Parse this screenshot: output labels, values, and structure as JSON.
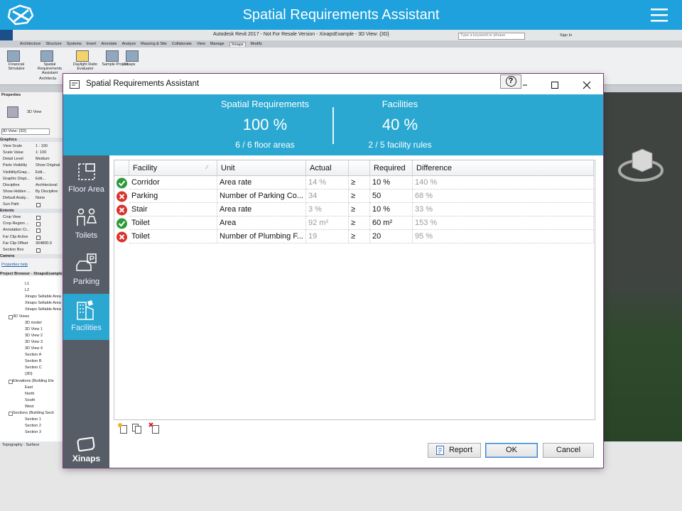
{
  "app_bar": {
    "title": "Spatial Requirements Assistant"
  },
  "revit": {
    "title": "Autodesk Revit 2017 - Not For Resale Version -   XinapsExample - 3D View: {3D}",
    "search_placeholder": "Type a keyword or phrase",
    "sign_in": "Sign In",
    "tabs": [
      "Architecture",
      "Structure",
      "Systems",
      "Insert",
      "Annotate",
      "Analyze",
      "Massing & Site",
      "Collaborate",
      "View",
      "Manage",
      "Xinaps",
      "Modify"
    ],
    "active_tab": 10,
    "ribbon_buttons": [
      "Financial Simulator",
      "Spatial Requirements Assistant",
      "Daylight Ratio Evaluator",
      "Sample Project",
      "Xinaps"
    ],
    "ribbon_panel": "Architectu",
    "properties": {
      "title": "Properties",
      "type": "3D View",
      "selector": "3D View: {3D}",
      "rows": [
        {
          "name": "Graphics",
          "section": true
        },
        {
          "name": "View Scale",
          "value": "1 : 100"
        },
        {
          "name": "Scale Value",
          "value": "1: 100"
        },
        {
          "name": "Detail Level",
          "value": "Medium"
        },
        {
          "name": "Parts Visibility",
          "value": "Show Original"
        },
        {
          "name": "Visibility/Grap...",
          "value": "Edit..."
        },
        {
          "name": "Graphic Displ...",
          "value": "Edit..."
        },
        {
          "name": "Discipline",
          "value": "Architectural"
        },
        {
          "name": "Show Hidden ...",
          "value": "By Discipline"
        },
        {
          "name": "Default Analy...",
          "value": "None"
        },
        {
          "name": "Sun Path",
          "checkbox": true
        },
        {
          "name": "Extents",
          "section": true
        },
        {
          "name": "Crop View",
          "checkbox": true
        },
        {
          "name": "Crop Region ...",
          "checkbox": true
        },
        {
          "name": "Annotation Cr...",
          "checkbox": true
        },
        {
          "name": "Far Clip Active",
          "checkbox": true
        },
        {
          "name": "Far Clip Offset",
          "value": "304800.0"
        },
        {
          "name": "Section Box",
          "checkbox": true
        },
        {
          "name": "Camera",
          "section": true
        }
      ],
      "help": "Properties help"
    },
    "browser": {
      "title": "Project Browser - XinapsExample",
      "items": [
        {
          "label": "L1"
        },
        {
          "label": "L2"
        },
        {
          "label": "Xinaps Sellable Area"
        },
        {
          "label": "Xinaps Sellable Area"
        },
        {
          "label": "Xinaps Sellable Area"
        },
        {
          "label": "3D Views",
          "group": true
        },
        {
          "label": "3D model"
        },
        {
          "label": "3D View 1"
        },
        {
          "label": "3D View 2"
        },
        {
          "label": "3D View 3"
        },
        {
          "label": "3D View 4"
        },
        {
          "label": "Section A"
        },
        {
          "label": "Section B"
        },
        {
          "label": "Section C"
        },
        {
          "label": "{3D}"
        },
        {
          "label": "Elevations (Building Ele",
          "group": true
        },
        {
          "label": "East"
        },
        {
          "label": "North"
        },
        {
          "label": "South"
        },
        {
          "label": "West"
        },
        {
          "label": "Sections (Building Secti",
          "group": true
        },
        {
          "label": "Section 1"
        },
        {
          "label": "Section 2"
        },
        {
          "label": "Section 3"
        }
      ]
    },
    "status": "Topography : Surface"
  },
  "dialog": {
    "title": "Spatial Requirements  Assistant",
    "help": "?",
    "summary": [
      {
        "label": "Spatial Requirements",
        "value": "100 %",
        "detail": "6 / 6 floor areas"
      },
      {
        "label": "Facilities",
        "value": "40 %",
        "detail": "2 / 5 facility rules"
      }
    ],
    "nav": [
      {
        "label": "Floor Area"
      },
      {
        "label": "Toilets"
      },
      {
        "label": "Parking"
      },
      {
        "label": "Facilities",
        "active": true
      }
    ],
    "logo": "Xinaps",
    "table": {
      "columns": [
        "Facility",
        "Unit",
        "Actual",
        "Required",
        "Difference"
      ],
      "rows": [
        {
          "status": "pass",
          "facility": "Corridor",
          "unit": "Area rate",
          "actual": "14 %",
          "operator": "≥",
          "required": "10 %",
          "difference": "140 %"
        },
        {
          "status": "fail",
          "facility": "Parking",
          "unit": "Number of Parking Co...",
          "actual": "34",
          "operator": "≥",
          "required": "50",
          "difference": "68 %"
        },
        {
          "status": "fail",
          "facility": "Stair",
          "unit": "Area rate",
          "actual": "3 %",
          "operator": "≥",
          "required": "10 %",
          "difference": "33 %"
        },
        {
          "status": "pass",
          "facility": "Toilet",
          "unit": "Area",
          "actual": "92 m²",
          "operator": "≥",
          "required": "60 m²",
          "difference": "153 %"
        },
        {
          "status": "fail",
          "facility": "Toilet",
          "unit": "Number of Plumbing F...",
          "actual": "19",
          "operator": "≥",
          "required": "20",
          "difference": "95 %"
        }
      ]
    },
    "buttons": {
      "report": "Report",
      "ok": "OK",
      "cancel": "Cancel"
    }
  }
}
